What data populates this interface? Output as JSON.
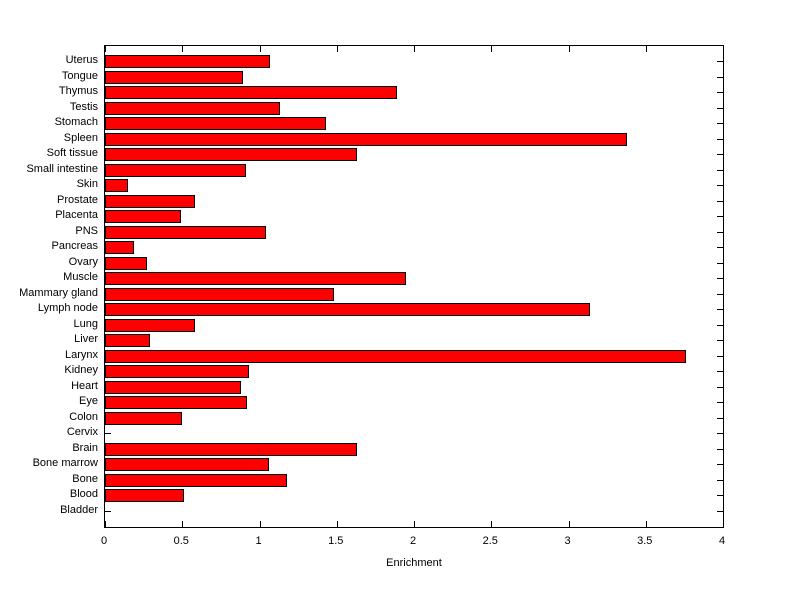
{
  "figure": {
    "background_color": "#ffffff",
    "axis_color": "#000000",
    "text_color": "#000000"
  },
  "chart_data": {
    "type": "bar",
    "orientation": "horizontal",
    "title": "",
    "xlabel": "Enrichment",
    "ylabel": "",
    "xlim": [
      0,
      4
    ],
    "x_tick_labels": [
      "0",
      "0.5",
      "1",
      "1.5",
      "2",
      "2.5",
      "3",
      "3.5",
      "4"
    ],
    "grid": false,
    "legend": null,
    "bar_color": "#ff0000",
    "bar_edge_color": "#000000",
    "categories": [
      "Uterus",
      "Tongue",
      "Thymus",
      "Testis",
      "Stomach",
      "Spleen",
      "Soft tissue",
      "Small intestine",
      "Skin",
      "Prostate",
      "Placenta",
      "PNS",
      "Pancreas",
      "Ovary",
      "Muscle",
      "Mammary gland",
      "Lymph node",
      "Lung",
      "Liver",
      "Larynx",
      "Kidney",
      "Heart",
      "Eye",
      "Colon",
      "Cervix",
      "Brain",
      "Bone marrow",
      "Bone",
      "Blood",
      "Bladder"
    ],
    "values": [
      1.07,
      0.89,
      1.89,
      1.13,
      1.43,
      3.38,
      1.63,
      0.91,
      0.15,
      0.58,
      0.49,
      1.04,
      0.19,
      0.27,
      1.95,
      1.48,
      3.14,
      0.58,
      0.29,
      3.76,
      0.93,
      0.88,
      0.92,
      0.5,
      0,
      1.63,
      1.06,
      1.18,
      0.51,
      0
    ]
  }
}
